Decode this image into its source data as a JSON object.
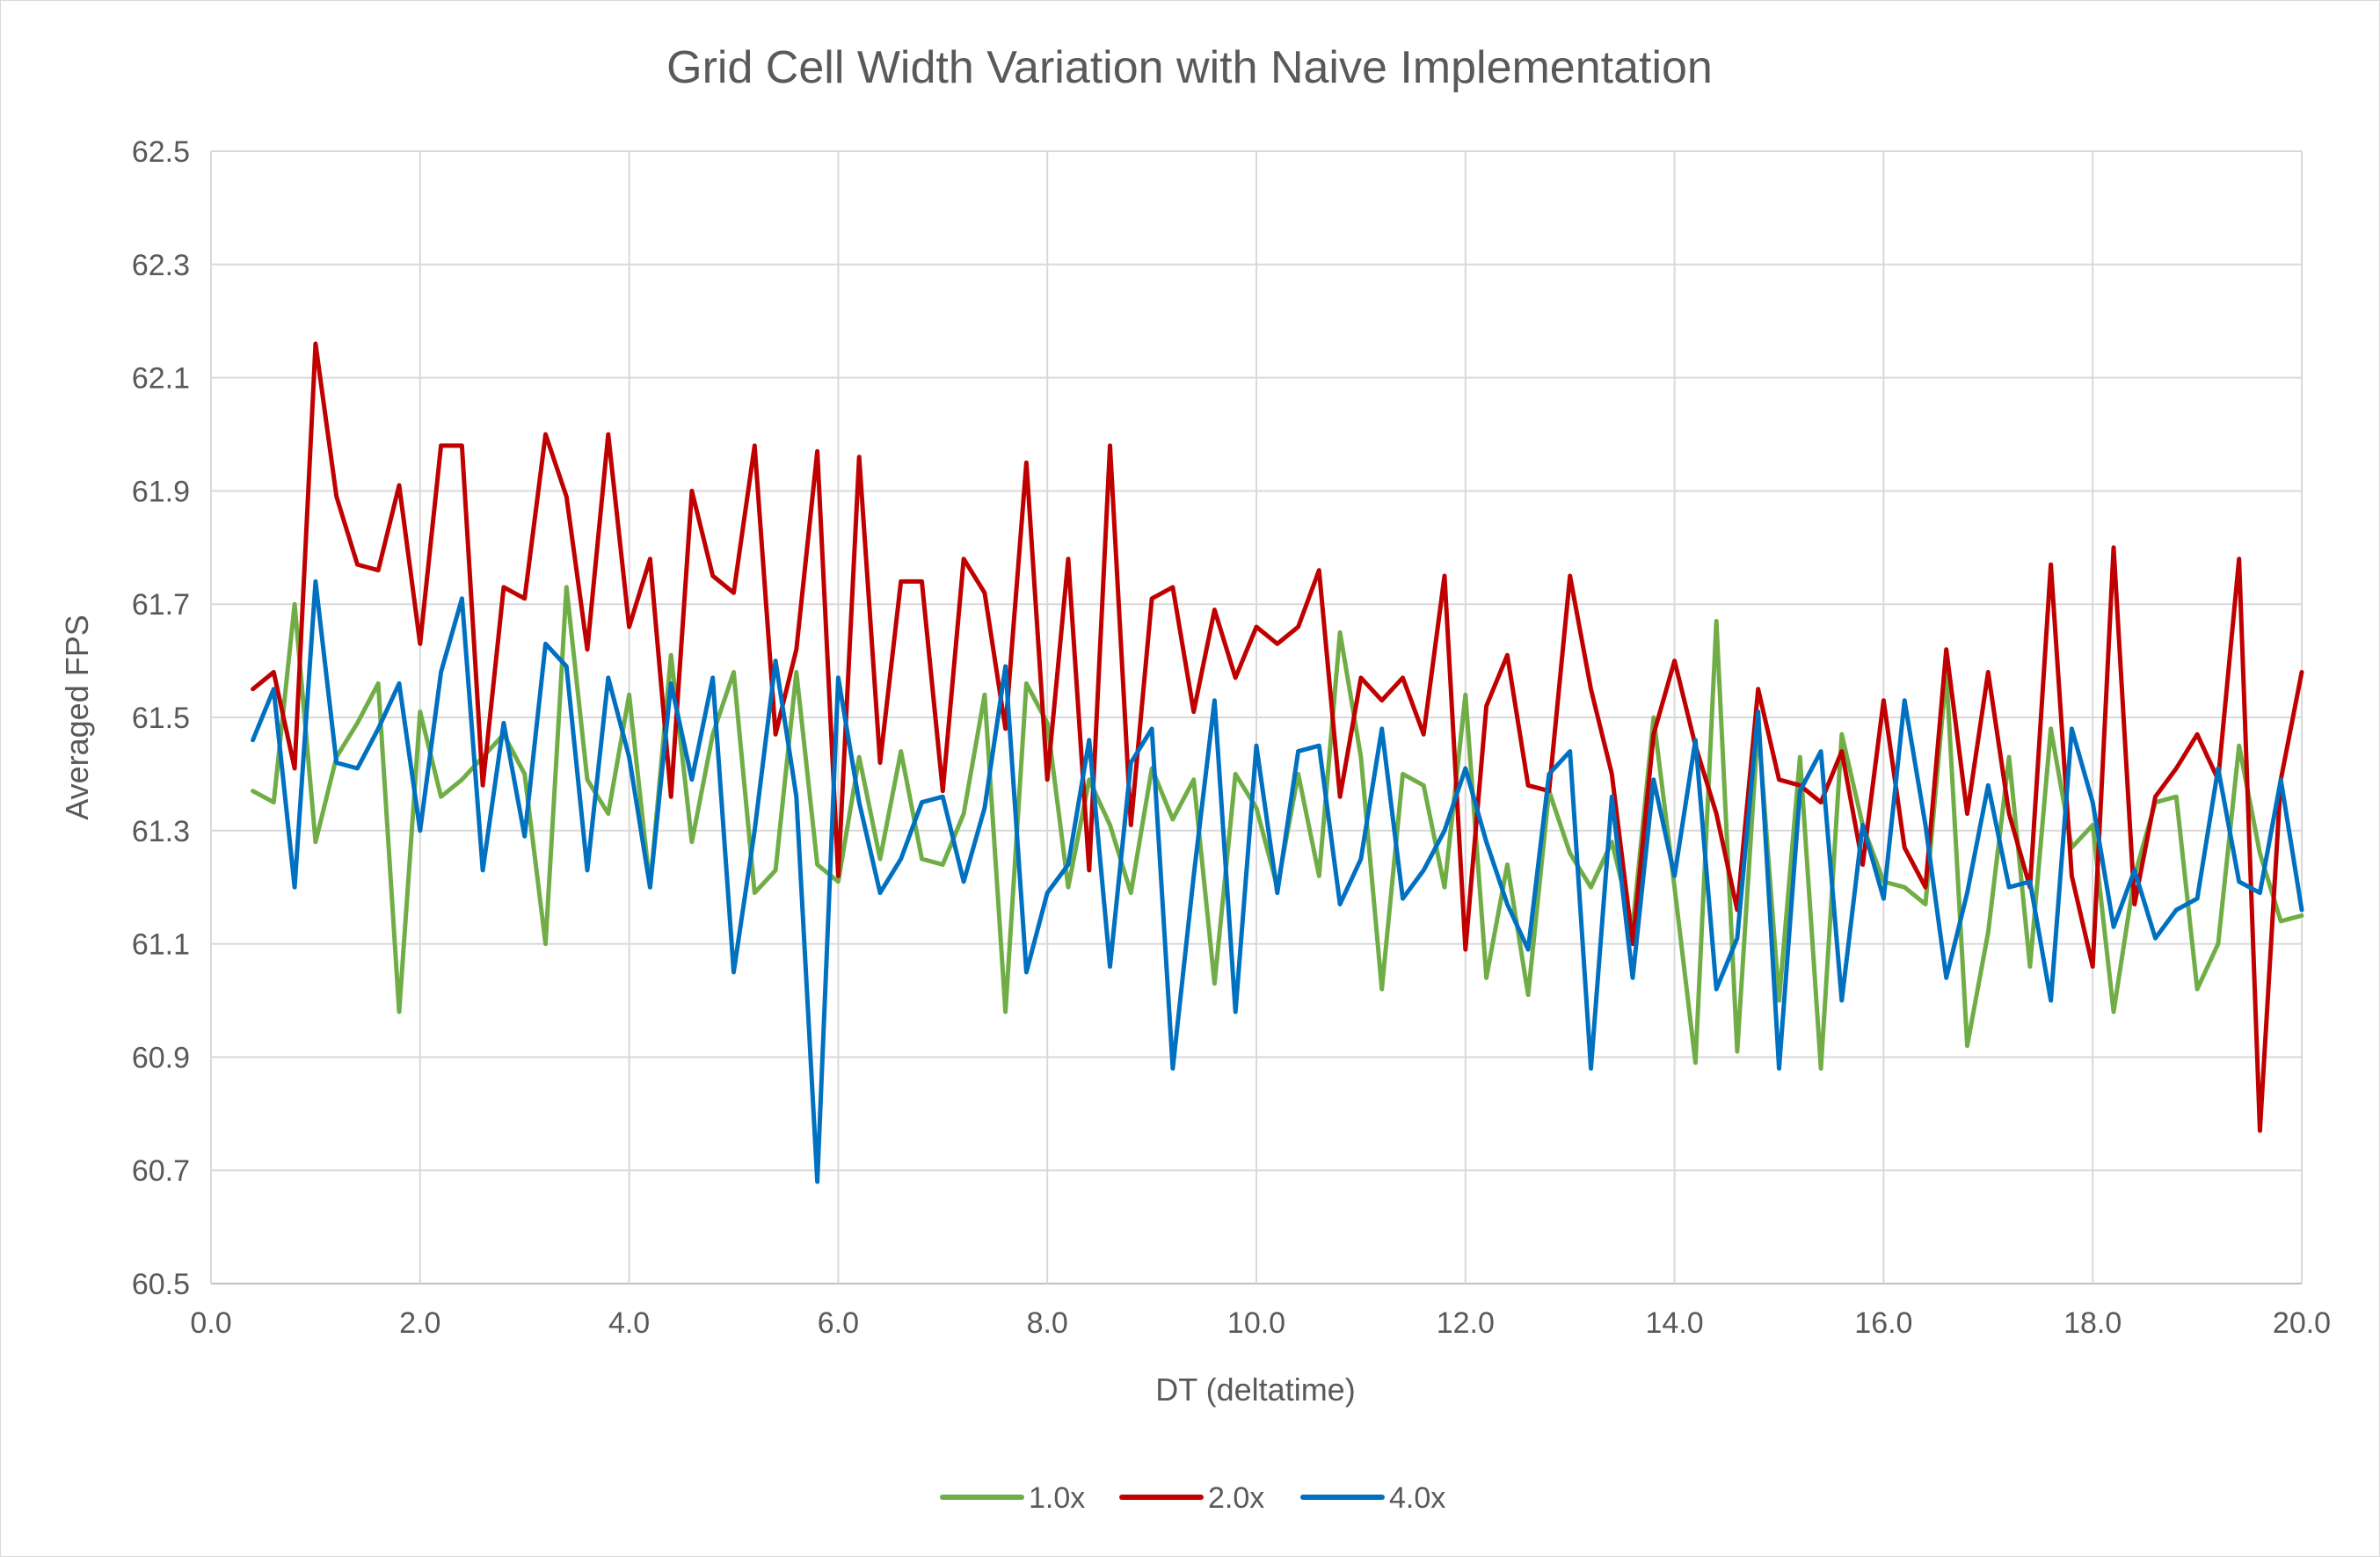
{
  "chart_data": {
    "type": "line",
    "title": "Grid Cell Width Variation with Naive Implementation",
    "xlabel": "DT (deltatime)",
    "ylabel": "Averaged FPS",
    "xlim": [
      0.0,
      20.0
    ],
    "ylim": [
      60.5,
      62.5
    ],
    "x_ticks": [
      "0.0",
      "2.0",
      "4.0",
      "6.0",
      "8.0",
      "10.0",
      "12.0",
      "14.0",
      "16.0",
      "18.0",
      "20.0"
    ],
    "y_ticks": [
      "60.5",
      "60.7",
      "60.9",
      "61.1",
      "61.3",
      "61.5",
      "61.7",
      "61.9",
      "62.1",
      "62.3",
      "62.5"
    ],
    "grid": "horizontal and vertical",
    "legend": "bottom",
    "x": [
      0.4,
      0.6,
      0.8,
      1.0,
      1.2,
      1.4,
      1.6,
      1.8,
      2.0,
      2.2,
      2.4,
      2.6,
      2.8,
      3.0,
      3.2,
      3.4,
      3.6,
      3.8,
      4.0,
      4.2,
      4.4,
      4.6,
      4.8,
      5.0,
      5.2,
      5.4,
      5.6,
      5.8,
      6.0,
      6.2,
      6.4,
      6.6,
      6.8,
      7.0,
      7.2,
      7.4,
      7.6,
      7.8,
      8.0,
      8.2,
      8.4,
      8.6,
      8.8,
      9.0,
      9.2,
      9.4,
      9.6,
      9.8,
      10.0,
      10.2,
      10.4,
      10.6,
      10.8,
      11.0,
      11.2,
      11.4,
      11.6,
      11.8,
      12.0,
      12.2,
      12.4,
      12.6,
      12.8,
      13.0,
      13.2,
      13.4,
      13.6,
      13.8,
      14.0,
      14.2,
      14.4,
      14.6,
      14.8,
      15.0,
      15.2,
      15.4,
      15.6,
      15.8,
      16.0,
      16.2,
      16.4,
      16.6,
      16.8,
      17.0,
      17.2,
      17.4,
      17.6,
      17.8,
      18.0,
      18.2,
      18.4,
      18.6,
      18.8,
      19.0,
      19.2,
      19.4,
      19.6,
      19.8,
      20.0
    ],
    "series": [
      {
        "name": "1.0x",
        "color": "#70ad47",
        "values": [
          61.37,
          61.35,
          61.7,
          61.28,
          61.43,
          61.49,
          61.56,
          60.98,
          61.51,
          61.36,
          61.39,
          61.43,
          61.47,
          61.4,
          61.1,
          61.73,
          61.39,
          61.33,
          61.54,
          61.2,
          61.61,
          61.28,
          61.47,
          61.58,
          61.19,
          61.23,
          61.58,
          61.24,
          61.21,
          61.43,
          61.25,
          61.44,
          61.25,
          61.24,
          61.33,
          61.54,
          60.98,
          61.56,
          61.49,
          61.2,
          61.39,
          61.31,
          61.19,
          61.41,
          61.32,
          61.39,
          61.03,
          61.4,
          61.34,
          61.2,
          61.4,
          61.22,
          61.65,
          61.43,
          61.02,
          61.4,
          61.38,
          61.2,
          61.54,
          61.04,
          61.24,
          61.01,
          61.37,
          61.26,
          61.2,
          61.28,
          61.13,
          61.5,
          61.2,
          60.89,
          61.67,
          60.91,
          61.49,
          61.0,
          61.43,
          60.88,
          61.47,
          61.31,
          61.21,
          61.2,
          61.17,
          61.58,
          60.92,
          61.12,
          61.43,
          61.06,
          61.48,
          61.27,
          61.31,
          60.98,
          61.22,
          61.35,
          61.36,
          61.02,
          61.1,
          61.45,
          61.26,
          61.14,
          61.15
        ]
      },
      {
        "name": "2.0x",
        "color": "#c00000",
        "values": [
          61.55,
          61.58,
          61.41,
          62.16,
          61.89,
          61.77,
          61.76,
          61.91,
          61.63,
          61.98,
          61.98,
          61.38,
          61.73,
          61.71,
          62.0,
          61.89,
          61.62,
          62.0,
          61.66,
          61.78,
          61.36,
          61.9,
          61.75,
          61.72,
          61.98,
          61.47,
          61.62,
          61.97,
          61.22,
          61.96,
          61.42,
          61.74,
          61.74,
          61.37,
          61.78,
          61.72,
          61.48,
          61.95,
          61.39,
          61.78,
          61.23,
          61.98,
          61.31,
          61.71,
          61.73,
          61.51,
          61.69,
          61.57,
          61.66,
          61.63,
          61.66,
          61.76,
          61.36,
          61.57,
          61.53,
          61.57,
          61.47,
          61.75,
          61.09,
          61.52,
          61.61,
          61.38,
          61.37,
          61.75,
          61.55,
          61.4,
          61.1,
          61.47,
          61.6,
          61.45,
          61.33,
          61.16,
          61.55,
          61.39,
          61.38,
          61.35,
          61.44,
          61.24,
          61.53,
          61.27,
          61.2,
          61.62,
          61.33,
          61.58,
          61.33,
          61.2,
          61.77,
          61.22,
          61.06,
          61.8,
          61.17,
          61.36,
          61.41,
          61.47,
          61.39,
          61.78,
          60.77,
          61.39,
          61.58
        ]
      },
      {
        "name": "4.0x",
        "color": "#0070c0",
        "values": [
          61.46,
          61.55,
          61.2,
          61.74,
          61.42,
          61.41,
          61.48,
          61.56,
          61.3,
          61.58,
          61.71,
          61.23,
          61.49,
          61.29,
          61.63,
          61.59,
          61.23,
          61.57,
          61.43,
          61.2,
          61.56,
          61.39,
          61.57,
          61.05,
          61.3,
          61.6,
          61.36,
          60.68,
          61.57,
          61.35,
          61.19,
          61.25,
          61.35,
          61.36,
          61.21,
          61.34,
          61.59,
          61.05,
          61.19,
          61.24,
          61.46,
          61.06,
          61.42,
          61.48,
          60.88,
          61.22,
          61.53,
          60.98,
          61.45,
          61.19,
          61.44,
          61.45,
          61.17,
          61.25,
          61.48,
          61.18,
          61.23,
          61.3,
          61.41,
          61.28,
          61.17,
          61.09,
          61.4,
          61.44,
          60.88,
          61.36,
          61.04,
          61.39,
          61.22,
          61.46,
          61.02,
          61.11,
          61.51,
          60.88,
          61.37,
          61.44,
          61.0,
          61.31,
          61.18,
          61.53,
          61.31,
          61.04,
          61.19,
          61.38,
          61.2,
          61.21,
          61.0,
          61.48,
          61.35,
          61.13,
          61.23,
          61.11,
          61.16,
          61.18,
          61.41,
          61.21,
          61.19,
          61.39,
          61.16
        ]
      }
    ]
  }
}
